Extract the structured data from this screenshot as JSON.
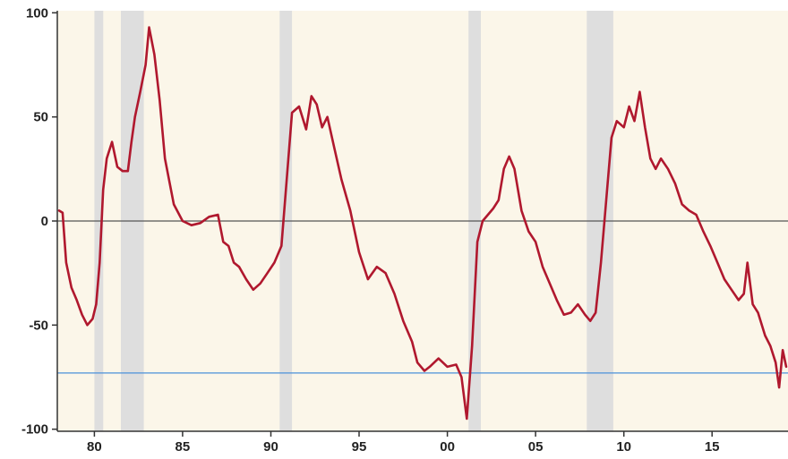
{
  "chart_data": {
    "type": "line",
    "title": "",
    "xlabel": "",
    "ylabel": "",
    "xlim": [
      1977.9,
      2019.3
    ],
    "ylim": [
      -101,
      101
    ],
    "x_ticks": [
      {
        "value": 1980,
        "label": "80"
      },
      {
        "value": 1985,
        "label": "85"
      },
      {
        "value": 1990,
        "label": "90"
      },
      {
        "value": 1995,
        "label": "95"
      },
      {
        "value": 2000,
        "label": "00"
      },
      {
        "value": 2005,
        "label": "05"
      },
      {
        "value": 2010,
        "label": "10"
      },
      {
        "value": 2015,
        "label": "15"
      }
    ],
    "y_ticks": [
      {
        "value": 100,
        "label": "100"
      },
      {
        "value": 50,
        "label": "50"
      },
      {
        "value": 0,
        "label": "0"
      },
      {
        "value": -50,
        "label": "-50"
      },
      {
        "value": -100,
        "label": "-100"
      }
    ],
    "recessions": [
      [
        1980.0,
        1980.5
      ],
      [
        1981.5,
        1982.8
      ],
      [
        1990.5,
        1991.2
      ],
      [
        2001.2,
        2001.9
      ],
      [
        2007.9,
        2009.4
      ]
    ],
    "reference_lines": [
      {
        "axis": "y",
        "value": 0,
        "color": "#555555"
      },
      {
        "axis": "y",
        "value": -73,
        "color": "#4a90d9"
      }
    ],
    "series": [
      {
        "color": "#b0182e",
        "x": [
          1978.0,
          1978.2,
          1978.4,
          1978.7,
          1979.0,
          1979.3,
          1979.6,
          1979.9,
          1980.1,
          1980.3,
          1980.5,
          1980.7,
          1981.0,
          1981.3,
          1981.6,
          1981.9,
          1982.1,
          1982.3,
          1982.6,
          1982.9,
          1983.1,
          1983.4,
          1983.7,
          1984.0,
          1984.5,
          1985.0,
          1985.5,
          1986.0,
          1986.5,
          1987.0,
          1987.3,
          1987.6,
          1987.9,
          1988.2,
          1988.6,
          1989.0,
          1989.4,
          1989.8,
          1990.2,
          1990.6,
          1990.9,
          1991.2,
          1991.6,
          1992.0,
          1992.3,
          1992.6,
          1992.9,
          1993.2,
          1993.6,
          1994.0,
          1994.5,
          1995.0,
          1995.5,
          1996.0,
          1996.5,
          1997.0,
          1997.5,
          1998.0,
          1998.3,
          1998.7,
          1999.0,
          1999.5,
          2000.0,
          2000.5,
          2000.8,
          2001.1,
          2001.4,
          2001.7,
          2002.0,
          2002.3,
          2002.6,
          2002.9,
          2003.2,
          2003.5,
          2003.8,
          2004.2,
          2004.6,
          2005.0,
          2005.4,
          2005.8,
          2006.2,
          2006.6,
          2007.0,
          2007.4,
          2007.8,
          2008.1,
          2008.4,
          2008.7,
          2009.0,
          2009.3,
          2009.6,
          2010.0,
          2010.3,
          2010.6,
          2010.9,
          2011.2,
          2011.5,
          2011.8,
          2012.1,
          2012.5,
          2012.9,
          2013.3,
          2013.7,
          2014.1,
          2014.5,
          2014.9,
          2015.3,
          2015.7,
          2016.1,
          2016.5,
          2016.8,
          2017.0,
          2017.3,
          2017.6,
          2018.0,
          2018.3,
          2018.6,
          2018.8,
          2019.0,
          2019.2
        ],
        "y": [
          5,
          4,
          -20,
          -32,
          -38,
          -45,
          -50,
          -47,
          -40,
          -20,
          15,
          30,
          38,
          26,
          24,
          24,
          38,
          50,
          62,
          75,
          93,
          80,
          58,
          30,
          8,
          0,
          -2,
          -1,
          2,
          3,
          -10,
          -12,
          -20,
          -22,
          -28,
          -33,
          -30,
          -25,
          -20,
          -12,
          20,
          52,
          55,
          44,
          60,
          56,
          45,
          50,
          35,
          20,
          5,
          -15,
          -28,
          -22,
          -25,
          -35,
          -48,
          -58,
          -68,
          -72,
          -70,
          -66,
          -70,
          -69,
          -75,
          -95,
          -60,
          -10,
          0,
          3,
          6,
          10,
          25,
          31,
          25,
          5,
          -5,
          -10,
          -22,
          -30,
          -38,
          -45,
          -44,
          -40,
          -45,
          -48,
          -44,
          -20,
          10,
          40,
          48,
          45,
          55,
          48,
          62,
          45,
          30,
          25,
          30,
          25,
          18,
          8,
          5,
          3,
          -5,
          -12,
          -20,
          -28,
          -33,
          -38,
          -35,
          -20,
          -40,
          -44,
          -55,
          -60,
          -68,
          -80,
          -62,
          -70
        ]
      }
    ]
  }
}
